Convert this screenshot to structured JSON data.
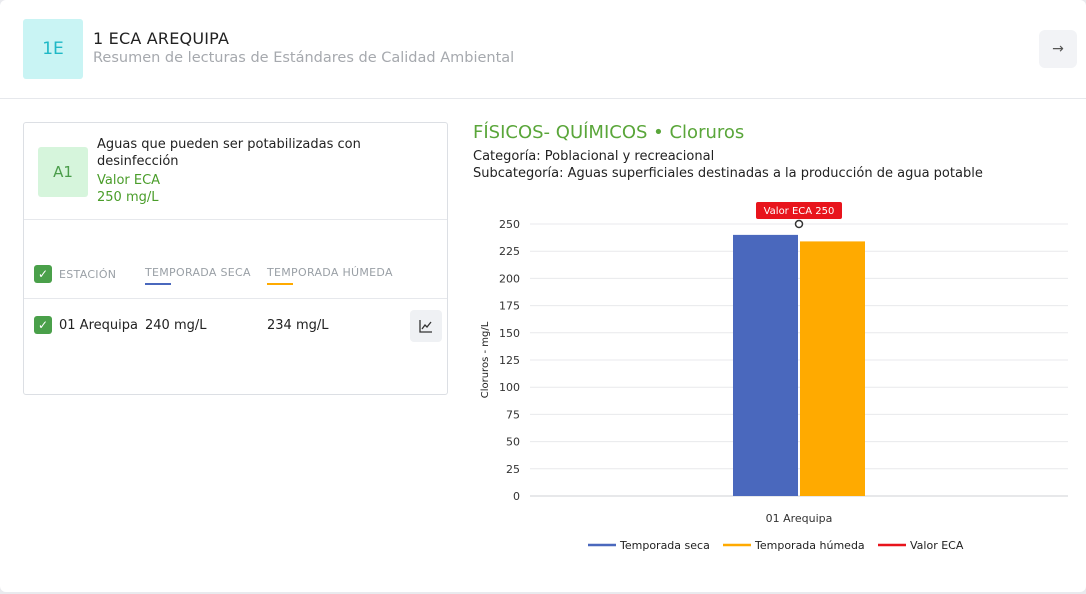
{
  "header": {
    "avatar": "1E",
    "title": "1 ECA AREQUIPA",
    "subtitle": "Resumen de lecturas de Estándares de Calidad Ambiental",
    "arrow": "→"
  },
  "card": {
    "badge": "A1",
    "description": "Aguas que pueden ser potabilizadas con desinfección",
    "eca_label": "Valor ECA",
    "eca_value": "250 mg/L",
    "columns": {
      "station": "ESTACIÓN",
      "dry": "TEMPORADA SECA",
      "wet": "TEMPORADA HÚMEDA"
    },
    "rows": [
      {
        "station": "01 Arequipa",
        "dry": "240 mg/L",
        "wet": "234 mg/L"
      }
    ]
  },
  "chart_header": {
    "title": "FÍSICOS- QUÍMICOS • Cloruros",
    "category": "Categoría: Poblacional y recreacional",
    "subcategory": "Subcategoría: Aguas superficiales destinadas a la producción de agua potable"
  },
  "colors": {
    "dry": "#4a68bd",
    "wet": "#ffaa00",
    "eca": "#e8141c",
    "accent": "#5aa63a"
  },
  "chart_data": {
    "type": "bar",
    "categories": [
      "01 Arequipa"
    ],
    "series": [
      {
        "name": "Temporada seca",
        "values": [
          240
        ]
      },
      {
        "name": "Temporada húmeda",
        "values": [
          234
        ]
      }
    ],
    "reference": {
      "name": "Valor ECA",
      "value": 250,
      "label": "Valor ECA 250"
    },
    "ylabel": "Cloruros - mg/L",
    "ylim": [
      0,
      250
    ],
    "yticks": [
      0,
      25,
      50,
      75,
      100,
      125,
      150,
      175,
      200,
      225,
      250
    ],
    "grid": true,
    "legend": "bottom"
  }
}
